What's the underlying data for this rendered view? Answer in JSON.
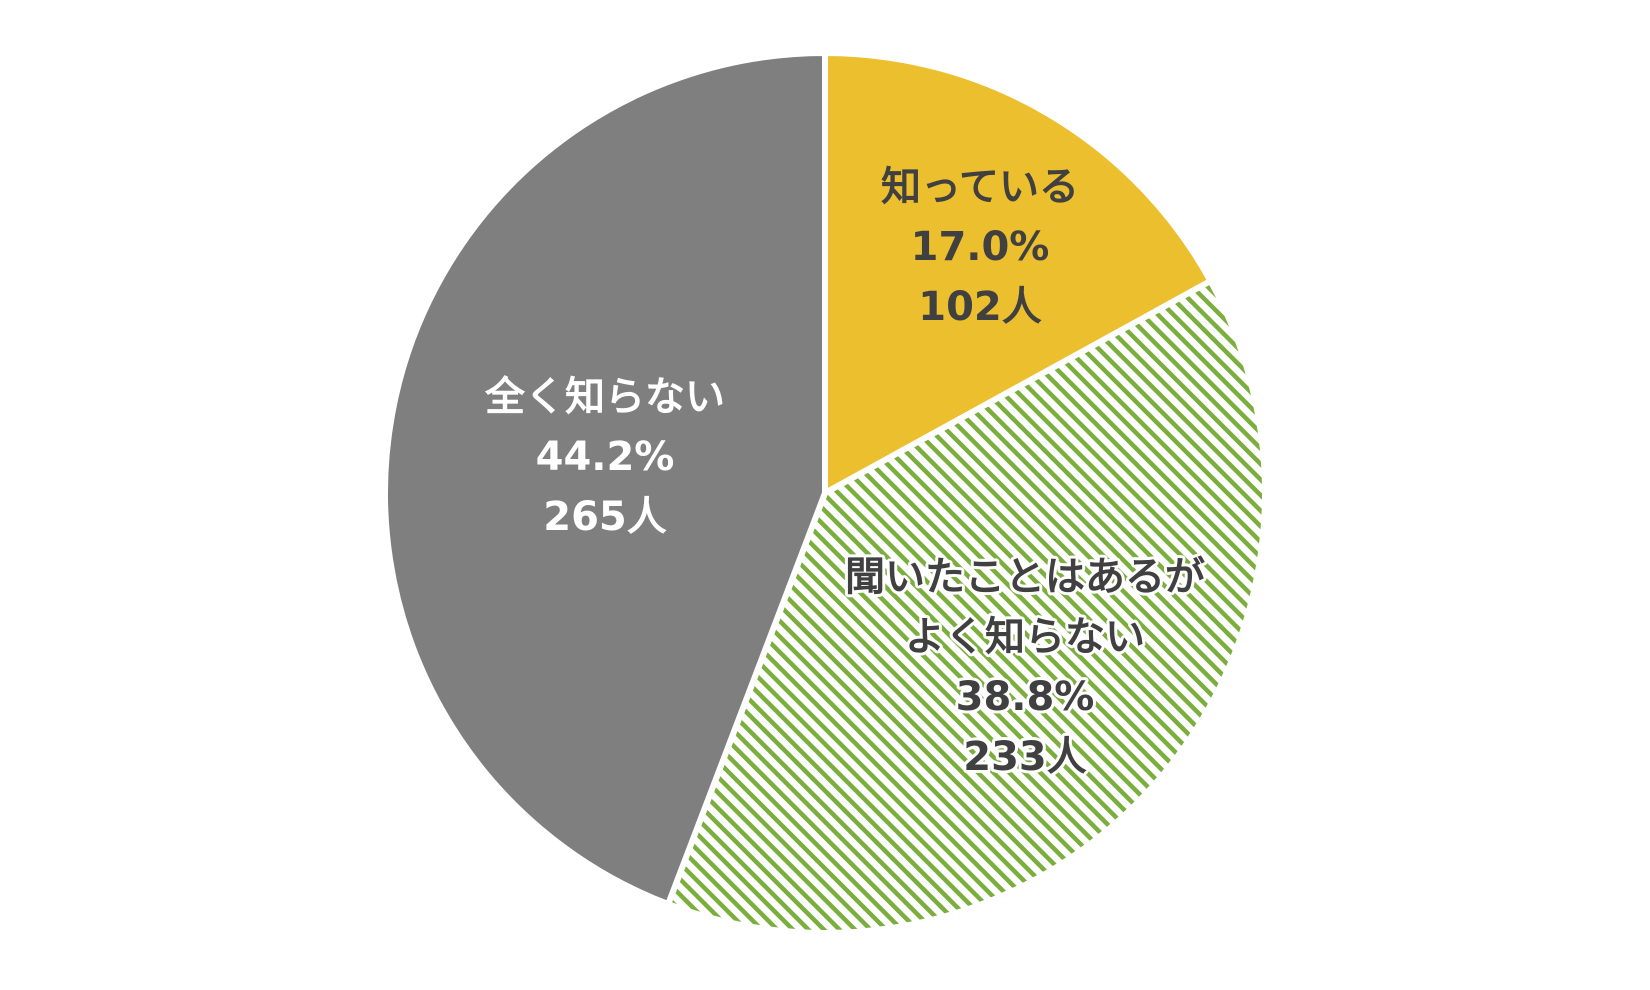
{
  "chart_data": {
    "type": "pie",
    "title": "",
    "start_angle_deg": 0,
    "direction": "clockwise",
    "slices": [
      {
        "label_lines": [
          "知っている"
        ],
        "percent_text": "17.0%",
        "count_text": "102人",
        "percent": 17.0,
        "count": 102,
        "color": "#EBBF2E",
        "pattern": "solid",
        "label_color": "#404040"
      },
      {
        "label_lines": [
          "聞いたことはあるが",
          "よく知らない"
        ],
        "percent_text": "38.8%",
        "count_text": "233人",
        "percent": 38.8,
        "count": 233,
        "color": "#7CAE3E",
        "pattern": "diagonal-stripes",
        "label_color": "#404040"
      },
      {
        "label_lines": [
          "全く知らない"
        ],
        "percent_text": "44.2%",
        "count_text": "265人",
        "percent": 44.2,
        "count": 265,
        "color": "#7F7F7F",
        "pattern": "solid",
        "label_color": "#ffffff"
      }
    ]
  }
}
